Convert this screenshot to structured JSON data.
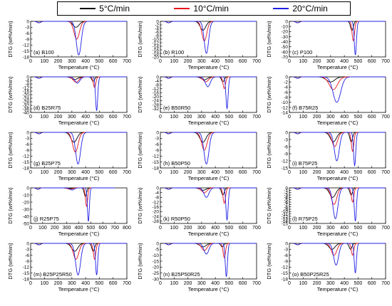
{
  "legend": {
    "items": [
      {
        "label": "5°C/min",
        "color": "#000000"
      },
      {
        "label": "10°C/min",
        "color": "#e8141c"
      },
      {
        "label": "20°C/min",
        "color": "#1f1fe6"
      }
    ]
  },
  "chart_data": [
    {
      "type": "line",
      "panel": "(a) B100",
      "xlabel": "Temperature (°C)",
      "ylabel": "DTG (wt%/min)",
      "xlim": [
        0,
        700
      ],
      "xticks": [
        0,
        100,
        200,
        300,
        400,
        500,
        600,
        700
      ],
      "ylim": [
        -18,
        0
      ],
      "yticks": [
        0,
        -3,
        -6,
        -9,
        -12,
        -15,
        -18
      ],
      "series": [
        {
          "name": "5°C/min",
          "peaks": [
            {
              "x": 330,
              "y": -3,
              "w": 22
            }
          ]
        },
        {
          "name": "10°C/min",
          "peaks": [
            {
              "x": 335,
              "y": -9,
              "w": 20
            }
          ]
        },
        {
          "name": "20°C/min",
          "peaks": [
            {
              "x": 350,
              "y": -17,
              "w": 18
            }
          ]
        }
      ]
    },
    {
      "type": "line",
      "panel": "(b) R100",
      "xlabel": "Temperature (°C)",
      "ylabel": "DTG (wt%/min)",
      "xlim": [
        0,
        700
      ],
      "xticks": [
        0,
        100,
        200,
        300,
        400,
        500,
        600,
        700
      ],
      "ylim": [
        -20,
        0
      ],
      "yticks": [
        0,
        -2,
        -4,
        -6,
        -8,
        -10,
        -12,
        -14,
        -16,
        -18,
        -20
      ],
      "series": [
        {
          "name": "5°C/min",
          "peaks": [
            {
              "x": 310,
              "y": -5,
              "w": 20
            }
          ]
        },
        {
          "name": "10°C/min",
          "peaks": [
            {
              "x": 320,
              "y": -11,
              "w": 18
            }
          ]
        },
        {
          "name": "20°C/min",
          "peaks": [
            {
              "x": 335,
              "y": -18,
              "w": 16
            }
          ]
        }
      ]
    },
    {
      "type": "line",
      "panel": "(c) P100",
      "xlabel": "Temperature (°C)",
      "ylabel": "DTG (wt%/min)",
      "xlim": [
        0,
        700
      ],
      "xticks": [
        0,
        100,
        200,
        300,
        400,
        500,
        600,
        700
      ],
      "ylim": [
        -70,
        0
      ],
      "yticks": [
        0,
        -10,
        -20,
        -30,
        -40,
        -50,
        -60,
        -70
      ],
      "series": [
        {
          "name": "5°C/min",
          "peaks": [
            {
              "x": 455,
              "y": -18,
              "w": 10
            }
          ]
        },
        {
          "name": "10°C/min",
          "peaks": [
            {
              "x": 465,
              "y": -38,
              "w": 9
            }
          ]
        },
        {
          "name": "20°C/min",
          "peaks": [
            {
              "x": 480,
              "y": -66,
              "w": 8
            }
          ]
        }
      ]
    },
    {
      "type": "line",
      "panel": "(d) B25R75",
      "xlabel": "Temperature (°C)",
      "ylabel": "DTG (wt%/min)",
      "xlim": [
        0,
        700
      ],
      "xticks": [
        0,
        100,
        200,
        300,
        400,
        500,
        600,
        700
      ],
      "ylim": [
        -40,
        0
      ],
      "yticks": [
        0,
        -4,
        -8,
        -12,
        -16,
        -20,
        -24,
        -28,
        -32,
        -36,
        -40
      ],
      "series": [
        {
          "name": "5°C/min",
          "peaks": [
            {
              "x": 320,
              "y": -3,
              "w": 22
            },
            {
              "x": 455,
              "y": -5,
              "w": 10
            }
          ]
        },
        {
          "name": "10°C/min",
          "peaks": [
            {
              "x": 330,
              "y": -6,
              "w": 20
            },
            {
              "x": 465,
              "y": -12,
              "w": 9
            }
          ]
        },
        {
          "name": "20°C/min",
          "peaks": [
            {
              "x": 340,
              "y": -7,
              "w": 18
            },
            {
              "x": 480,
              "y": -38,
              "w": 8
            }
          ]
        }
      ]
    },
    {
      "type": "line",
      "panel": "(e) B50R50",
      "xlabel": "Temperature (°C)",
      "ylabel": "DTG (wt%/min)",
      "xlim": [
        0,
        700
      ],
      "xticks": [
        0,
        100,
        200,
        300,
        400,
        500,
        600,
        700
      ],
      "ylim": [
        -36,
        0
      ],
      "yticks": [
        0,
        -4,
        -8,
        -12,
        -16,
        -20,
        -24,
        -28,
        -32
      ],
      "series": [
        {
          "name": "5°C/min",
          "peaks": [
            {
              "x": 320,
              "y": -3,
              "w": 22
            },
            {
              "x": 455,
              "y": -5,
              "w": 10
            }
          ]
        },
        {
          "name": "10°C/min",
          "peaks": [
            {
              "x": 330,
              "y": -5,
              "w": 20
            },
            {
              "x": 465,
              "y": -12,
              "w": 9
            }
          ]
        },
        {
          "name": "20°C/min",
          "peaks": [
            {
              "x": 345,
              "y": -10,
              "w": 18
            },
            {
              "x": 485,
              "y": -32,
              "w": 8
            }
          ]
        }
      ]
    },
    {
      "type": "line",
      "panel": "(f) B75R25",
      "xlabel": "Temperature (°C)",
      "ylabel": "DTG (wt%/min)",
      "xlim": [
        0,
        700
      ],
      "xticks": [
        0,
        100,
        200,
        300,
        400,
        500,
        600,
        700
      ],
      "ylim": [
        -14,
        0
      ],
      "yticks": [
        0,
        -2,
        -4,
        -6,
        -8,
        -10,
        -12,
        -14
      ],
      "series": [
        {
          "name": "5°C/min",
          "peaks": [
            {
              "x": 300,
              "y": -2,
              "w": 30
            }
          ]
        },
        {
          "name": "10°C/min",
          "peaks": [
            {
              "x": 320,
              "y": -5,
              "w": 30
            }
          ]
        },
        {
          "name": "20°C/min",
          "peaks": [
            {
              "x": 345,
              "y": -10,
              "w": 28
            }
          ]
        }
      ]
    },
    {
      "type": "line",
      "panel": "(g) B25P75",
      "xlabel": "Temperature (°C)",
      "ylabel": "DTG (wt%/min)",
      "xlim": [
        0,
        700
      ],
      "xticks": [
        0,
        100,
        200,
        300,
        400,
        500,
        600,
        700
      ],
      "ylim": [
        -18,
        0
      ],
      "yticks": [
        0,
        -3,
        -6,
        -9,
        -12,
        -15,
        -18
      ],
      "series": [
        {
          "name": "5°C/min",
          "peaks": [
            {
              "x": 315,
              "y": -5,
              "w": 22
            }
          ]
        },
        {
          "name": "10°C/min",
          "peaks": [
            {
              "x": 325,
              "y": -10,
              "w": 20
            }
          ]
        },
        {
          "name": "20°C/min",
          "peaks": [
            {
              "x": 345,
              "y": -16,
              "w": 18
            }
          ]
        }
      ]
    },
    {
      "type": "line",
      "panel": "(h) B50P50",
      "xlabel": "Temperature (°C)",
      "ylabel": "DTG (wt%/min)",
      "xlim": [
        0,
        700
      ],
      "xticks": [
        0,
        100,
        200,
        300,
        400,
        500,
        600,
        700
      ],
      "ylim": [
        -18,
        0
      ],
      "yticks": [
        0,
        -3,
        -6,
        -9,
        -12,
        -15,
        -18
      ],
      "series": [
        {
          "name": "5°C/min",
          "peaks": [
            {
              "x": 310,
              "y": -5,
              "w": 22
            }
          ]
        },
        {
          "name": "10°C/min",
          "peaks": [
            {
              "x": 320,
              "y": -9,
              "w": 20
            }
          ]
        },
        {
          "name": "20°C/min",
          "peaks": [
            {
              "x": 335,
              "y": -16,
              "w": 18
            }
          ]
        }
      ]
    },
    {
      "type": "line",
      "panel": "(i) B75P25",
      "xlabel": "Temperature (°C)",
      "ylabel": "DTG (wt%/min)",
      "xlim": [
        0,
        700
      ],
      "xticks": [
        0,
        100,
        200,
        300,
        400,
        500,
        600,
        700
      ],
      "ylim": [
        -15,
        0
      ],
      "yticks": [
        0,
        -3,
        -6,
        -9,
        -12,
        -15
      ],
      "series": [
        {
          "name": "5°C/min",
          "peaks": [
            {
              "x": 320,
              "y": -4,
              "w": 22
            },
            {
              "x": 450,
              "y": -4,
              "w": 10
            }
          ]
        },
        {
          "name": "10°C/min",
          "peaks": [
            {
              "x": 330,
              "y": -6,
              "w": 20
            },
            {
              "x": 460,
              "y": -8,
              "w": 9
            }
          ]
        },
        {
          "name": "20°C/min",
          "peaks": [
            {
              "x": 345,
              "y": -12,
              "w": 18
            },
            {
              "x": 475,
              "y": -14,
              "w": 8
            }
          ]
        }
      ]
    },
    {
      "type": "line",
      "panel": "(j) R25P75",
      "xlabel": "Temperature (°C)",
      "ylabel": "DTG (wt%/min)",
      "xlim": [
        0,
        800
      ],
      "xticks": [
        0,
        100,
        200,
        300,
        400,
        500,
        600,
        700,
        800
      ],
      "ylim": [
        -50,
        0
      ],
      "yticks": [
        0,
        -10,
        -20,
        -30,
        -40,
        -50
      ],
      "series": [
        {
          "name": "5°C/min",
          "peaks": [
            {
              "x": 320,
              "y": -1,
              "w": 22
            },
            {
              "x": 455,
              "y": -12,
              "w": 10
            }
          ]
        },
        {
          "name": "10°C/min",
          "peaks": [
            {
              "x": 330,
              "y": -2,
              "w": 20
            },
            {
              "x": 465,
              "y": -26,
              "w": 9
            }
          ]
        },
        {
          "name": "20°C/min",
          "peaks": [
            {
              "x": 345,
              "y": -3,
              "w": 18
            },
            {
              "x": 480,
              "y": -47,
              "w": 8
            }
          ]
        }
      ]
    },
    {
      "type": "line",
      "panel": "(k) R50P50",
      "xlabel": "Temperature (°C)",
      "ylabel": "DTG (wt%/min)",
      "xlim": [
        0,
        700
      ],
      "xticks": [
        0,
        100,
        200,
        300,
        400,
        500,
        600,
        700
      ],
      "ylim": [
        -30,
        0
      ],
      "yticks": [
        0,
        -4,
        -8,
        -12,
        -16,
        -20,
        -24,
        -28
      ],
      "series": [
        {
          "name": "5°C/min",
          "peaks": [
            {
              "x": 310,
              "y": -2,
              "w": 22
            },
            {
              "x": 455,
              "y": -6,
              "w": 10
            }
          ]
        },
        {
          "name": "10°C/min",
          "peaks": [
            {
              "x": 320,
              "y": -4,
              "w": 20
            },
            {
              "x": 465,
              "y": -13,
              "w": 9
            }
          ]
        },
        {
          "name": "20°C/min",
          "peaks": [
            {
              "x": 335,
              "y": -8,
              "w": 18
            },
            {
              "x": 485,
              "y": -27,
              "w": 8
            }
          ]
        }
      ]
    },
    {
      "type": "line",
      "panel": "(l) R75P25",
      "xlabel": "Temperature (°C)",
      "ylabel": "DTG (wt%/min)",
      "xlim": [
        0,
        700
      ],
      "xticks": [
        0,
        100,
        200,
        300,
        400,
        500,
        600,
        700
      ],
      "ylim": [
        -15,
        0
      ],
      "yticks": [
        0,
        -1,
        -2,
        -3,
        -4,
        -5,
        -6,
        -7,
        -8,
        -9,
        -10,
        -11,
        -12,
        -13,
        -14,
        -15
      ],
      "series": [
        {
          "name": "5°C/min",
          "peaks": [
            {
              "x": 315,
              "y": -4,
              "w": 22
            },
            {
              "x": 450,
              "y": -3,
              "w": 10
            }
          ]
        },
        {
          "name": "10°C/min",
          "peaks": [
            {
              "x": 325,
              "y": -7,
              "w": 20
            },
            {
              "x": 460,
              "y": -6,
              "w": 9
            }
          ]
        },
        {
          "name": "20°C/min",
          "peaks": [
            {
              "x": 335,
              "y": -13,
              "w": 18
            },
            {
              "x": 480,
              "y": -14,
              "w": 8
            }
          ]
        }
      ]
    },
    {
      "type": "line",
      "panel": "(m) B25P25R50",
      "xlabel": "Temperature (°C)",
      "ylabel": "DTG (wt%/min)",
      "xlim": [
        0,
        700
      ],
      "xticks": [
        0,
        100,
        200,
        300,
        400,
        500,
        600,
        700
      ],
      "ylim": [
        -18,
        0
      ],
      "yticks": [
        0,
        -3,
        -6,
        -9,
        -12,
        -15,
        -18
      ],
      "series": [
        {
          "name": "5°C/min",
          "peaks": [
            {
              "x": 320,
              "y": -4,
              "w": 22
            },
            {
              "x": 455,
              "y": -4,
              "w": 10
            }
          ]
        },
        {
          "name": "10°C/min",
          "peaks": [
            {
              "x": 330,
              "y": -8,
              "w": 20
            },
            {
              "x": 465,
              "y": -8,
              "w": 9
            }
          ]
        },
        {
          "name": "20°C/min",
          "peaks": [
            {
              "x": 345,
              "y": -16,
              "w": 18
            },
            {
              "x": 480,
              "y": -16,
              "w": 8
            }
          ]
        }
      ]
    },
    {
      "type": "line",
      "panel": "(n) B25P50R25",
      "xlabel": "Temperature (°C)",
      "ylabel": "DTG (wt%/min)",
      "xlim": [
        0,
        700
      ],
      "xticks": [
        0,
        100,
        200,
        300,
        400,
        500,
        600,
        700
      ],
      "ylim": [
        -30,
        0
      ],
      "yticks": [
        0,
        -5,
        -10,
        -15,
        -20,
        -25,
        -30
      ],
      "series": [
        {
          "name": "5°C/min",
          "peaks": [
            {
              "x": 310,
              "y": -3,
              "w": 22
            },
            {
              "x": 450,
              "y": -3,
              "w": 10
            }
          ]
        },
        {
          "name": "10°C/min",
          "peaks": [
            {
              "x": 320,
              "y": -6,
              "w": 20
            },
            {
              "x": 465,
              "y": -12,
              "w": 9
            }
          ]
        },
        {
          "name": "20°C/min",
          "peaks": [
            {
              "x": 335,
              "y": -9,
              "w": 18
            },
            {
              "x": 480,
              "y": -28,
              "w": 8
            }
          ]
        }
      ]
    },
    {
      "type": "line",
      "panel": "(o) B50P25R25",
      "xlabel": "Temperature (°C)",
      "ylabel": "DTG (wt%/min)",
      "xlim": [
        0,
        700
      ],
      "xticks": [
        0,
        100,
        200,
        300,
        400,
        500,
        600,
        700
      ],
      "ylim": [
        -18,
        0
      ],
      "yticks": [
        0,
        -3,
        -6,
        -9,
        -12,
        -15,
        -18
      ],
      "series": [
        {
          "name": "5°C/min",
          "peaks": [
            {
              "x": 310,
              "y": -3,
              "w": 22
            },
            {
              "x": 445,
              "y": -3,
              "w": 10
            }
          ]
        },
        {
          "name": "10°C/min",
          "peaks": [
            {
              "x": 325,
              "y": -6,
              "w": 20
            },
            {
              "x": 460,
              "y": -6,
              "w": 9
            }
          ]
        },
        {
          "name": "20°C/min",
          "peaks": [
            {
              "x": 340,
              "y": -11,
              "w": 18
            },
            {
              "x": 480,
              "y": -15,
              "w": 8
            }
          ]
        }
      ]
    }
  ]
}
